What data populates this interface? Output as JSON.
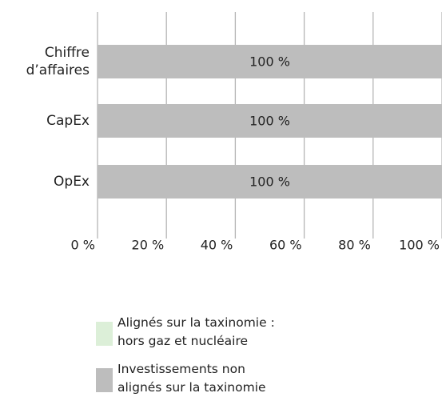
{
  "chart_data": {
    "type": "bar",
    "orientation": "horizontal",
    "stacked": true,
    "categories": [
      "Chiffre d’affaires",
      "CapEx",
      "OpEx"
    ],
    "series": [
      {
        "name": "Alignés sur la taxinomie : hors gaz et nucléaire",
        "color": "#dcefd8",
        "values": [
          0,
          0,
          0
        ]
      },
      {
        "name": "Investissements non alignés sur la taxinomie",
        "color": "#bdbdbd",
        "values": [
          100,
          100,
          100
        ],
        "value_labels": [
          "100 %",
          "100 %",
          "100 %"
        ]
      }
    ],
    "xlim": [
      0,
      100
    ],
    "xticks": [
      {
        "value": 0,
        "label": "0 %"
      },
      {
        "value": 20,
        "label": "20 %"
      },
      {
        "value": 40,
        "label": "40 %"
      },
      {
        "value": 60,
        "label": "60 %"
      },
      {
        "value": 80,
        "label": "80 %"
      },
      {
        "value": 100,
        "label": "100 %"
      }
    ],
    "grid": true,
    "legend": "bottom"
  }
}
